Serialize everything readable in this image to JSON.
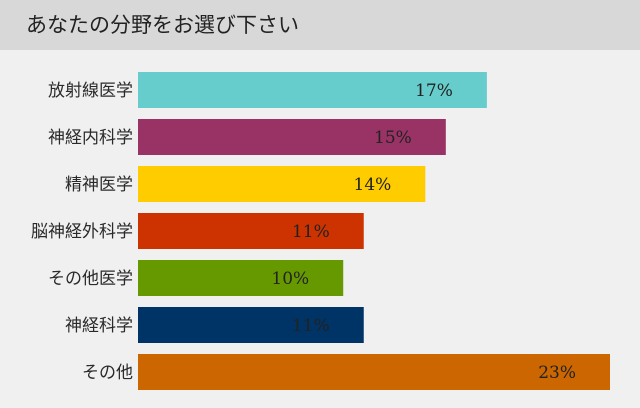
{
  "title": "あなたの分野をお選び下さい",
  "chart_data": {
    "type": "bar",
    "orientation": "horizontal",
    "title": "",
    "categories": [
      "放射線医学",
      "神経内科学",
      "精神医学",
      "脳神経外科学",
      "その他医学",
      "神経科学",
      "その他"
    ],
    "values": [
      17,
      15,
      14,
      11,
      10,
      11,
      23
    ],
    "value_labels": [
      "17%",
      "15%",
      "14%",
      "11%",
      "10%",
      "11%",
      "23%"
    ],
    "colors": [
      "#66cccc",
      "#993366",
      "#ffcc00",
      "#cc3300",
      "#669900",
      "#003366",
      "#cc6600"
    ],
    "xlim": [
      0,
      23
    ],
    "unit": "%",
    "grid": false,
    "legend": "none"
  }
}
